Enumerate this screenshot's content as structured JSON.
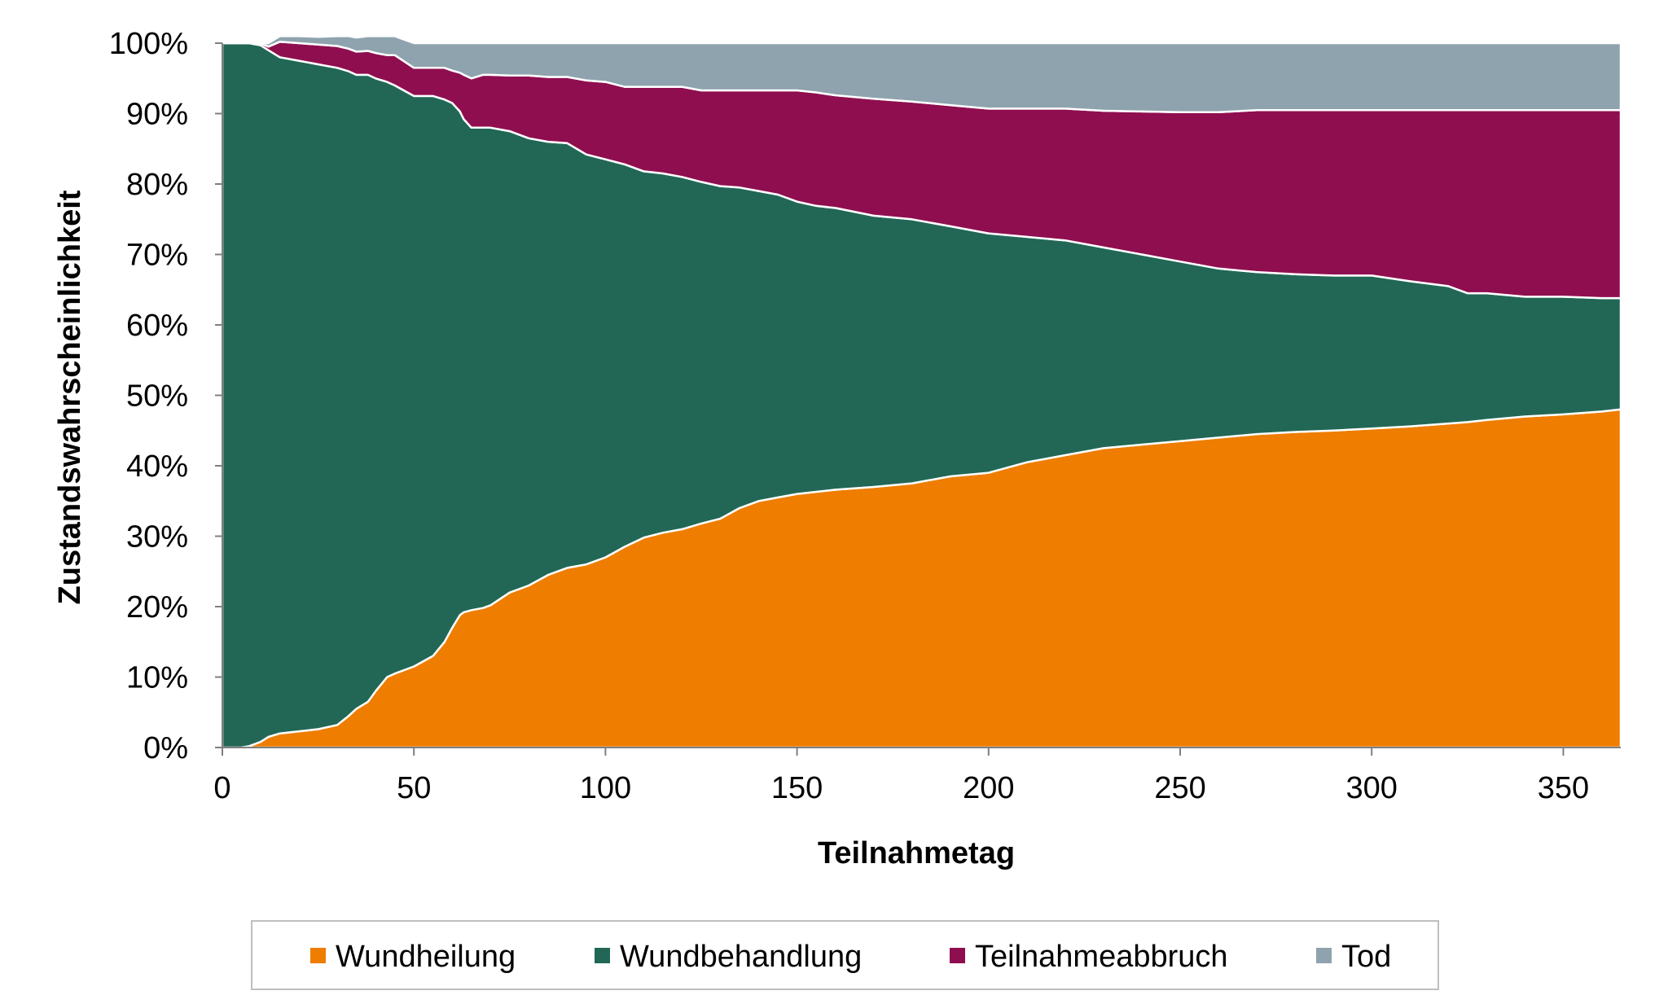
{
  "chart_data": {
    "type": "area",
    "stacked": true,
    "xlabel": "Teilnahmetag",
    "ylabel": "Zustandswahrscheinlichkeit",
    "xlim": [
      0,
      365
    ],
    "ylim": [
      0,
      100
    ],
    "x_ticks": [
      0,
      50,
      100,
      150,
      200,
      250,
      300,
      350
    ],
    "y_ticks": [
      "0%",
      "10%",
      "20%",
      "30%",
      "40%",
      "50%",
      "60%",
      "70%",
      "80%",
      "90%",
      "100%"
    ],
    "y_tick_values": [
      0,
      10,
      20,
      30,
      40,
      50,
      60,
      70,
      80,
      90,
      100
    ],
    "grid": false,
    "legend_position": "bottom",
    "x": [
      0,
      5,
      7,
      10,
      12,
      15,
      20,
      25,
      30,
      33,
      35,
      38,
      40,
      43,
      45,
      50,
      55,
      58,
      60,
      62,
      63,
      65,
      68,
      70,
      75,
      80,
      85,
      90,
      95,
      100,
      105,
      110,
      115,
      120,
      125,
      130,
      135,
      140,
      145,
      150,
      155,
      160,
      170,
      180,
      190,
      200,
      210,
      220,
      230,
      240,
      250,
      260,
      270,
      280,
      290,
      300,
      310,
      320,
      325,
      330,
      340,
      350,
      360,
      365
    ],
    "series": [
      {
        "name": "Wundheilung",
        "color": "#ee7d00",
        "values": [
          0,
          0,
          0.2,
          0.8,
          1.5,
          2.0,
          2.3,
          2.6,
          3.2,
          4.5,
          5.5,
          6.5,
          8.0,
          10.0,
          10.5,
          11.5,
          13.0,
          15.0,
          17.0,
          18.8,
          19.2,
          19.5,
          19.8,
          20.2,
          22.0,
          23.0,
          24.5,
          25.5,
          26.0,
          27.0,
          28.5,
          29.8,
          30.5,
          31.0,
          31.8,
          32.5,
          34.0,
          35.0,
          35.5,
          36.0,
          36.3,
          36.6,
          37.0,
          37.5,
          38.5,
          39.0,
          40.5,
          41.5,
          42.5,
          43.0,
          43.5,
          44.0,
          44.5,
          44.8,
          45.0,
          45.3,
          45.6,
          46.0,
          46.2,
          46.5,
          47.0,
          47.3,
          47.7,
          48.0
        ]
      },
      {
        "name": "Wundbehandlung",
        "color": "#226756",
        "values": [
          100,
          100,
          99.8,
          98.9,
          97.5,
          96.0,
          95.2,
          94.4,
          93.3,
          91.5,
          90.0,
          89.0,
          87.0,
          84.5,
          83.5,
          81.0,
          79.5,
          77.0,
          74.5,
          71.5,
          70.0,
          68.5,
          68.2,
          67.8,
          65.5,
          63.5,
          61.5,
          60.3,
          58.2,
          56.5,
          54.3,
          52.0,
          51.0,
          50.0,
          48.5,
          47.2,
          45.5,
          44.0,
          43.0,
          41.5,
          40.6,
          40.0,
          38.5,
          37.5,
          35.5,
          34.0,
          32.0,
          30.5,
          28.5,
          27.0,
          25.5,
          24.0,
          23.0,
          22.4,
          22.0,
          21.7,
          20.6,
          19.5,
          18.3,
          18.0,
          17.0,
          16.7,
          16.1,
          15.8
        ]
      },
      {
        "name": "Teilnahmeabbruch",
        "color": "#8f0e4f",
        "values": [
          0,
          0,
          0,
          0.3,
          0.5,
          2.2,
          2.5,
          2.8,
          3.1,
          3.2,
          3.3,
          3.4,
          3.6,
          3.8,
          4.3,
          4.0,
          4.0,
          4.5,
          4.6,
          5.5,
          6.3,
          7.0,
          7.5,
          7.5,
          7.9,
          8.9,
          9.2,
          9.4,
          10.5,
          11.0,
          11.0,
          12.0,
          12.3,
          12.8,
          13.0,
          13.6,
          13.8,
          14.3,
          14.8,
          15.8,
          16.1,
          16.0,
          16.6,
          16.7,
          17.2,
          17.7,
          18.2,
          18.7,
          19.4,
          20.3,
          21.2,
          22.2,
          23.0,
          23.3,
          23.5,
          23.5,
          24.3,
          25.0,
          26.0,
          26.0,
          26.5,
          26.5,
          26.7,
          26.7
        ]
      },
      {
        "name": "Tod",
        "color": "#8ea3ae",
        "values": [
          0,
          0,
          0,
          0,
          0.5,
          0.8,
          1.0,
          1.1,
          1.4,
          1.8,
          2.0,
          2.1,
          2.4,
          2.7,
          2.7,
          3.5,
          3.5,
          3.5,
          3.9,
          4.2,
          4.5,
          5.0,
          4.5,
          4.5,
          4.6,
          4.6,
          4.8,
          4.8,
          5.3,
          5.5,
          6.2,
          6.2,
          6.2,
          6.2,
          6.7,
          6.7,
          6.7,
          6.7,
          6.7,
          6.7,
          7.0,
          7.4,
          7.9,
          8.3,
          8.8,
          9.3,
          9.3,
          9.3,
          9.6,
          9.7,
          9.8,
          9.8,
          9.5,
          9.5,
          9.5,
          9.5,
          9.5,
          9.5,
          9.5,
          9.5,
          9.5,
          9.5,
          9.5,
          9.5
        ]
      }
    ]
  },
  "legend": {
    "items": [
      "Wundheilung",
      "Wundbehandlung",
      "Teilnahmeabbruch",
      "Tod"
    ]
  }
}
